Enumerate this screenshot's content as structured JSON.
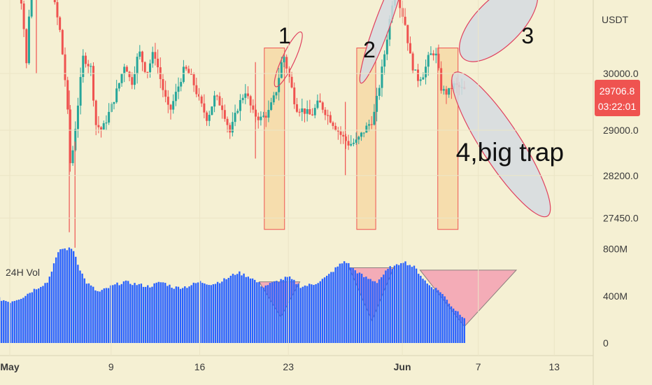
{
  "chart_data": {
    "type": "candlestick",
    "currency": "USDT",
    "y_ticks": [
      "30000.0",
      "29000.0",
      "28200.0",
      "27450.0"
    ],
    "ylim": [
      26900,
      31900
    ],
    "last_price": {
      "value": "29706.8",
      "countdown": "03:22:01"
    },
    "x_ticks": [
      {
        "label": "May",
        "day": 1,
        "bold": true
      },
      {
        "label": "9",
        "day": 9,
        "bold": false
      },
      {
        "label": "16",
        "day": 16,
        "bold": false
      },
      {
        "label": "23",
        "day": 23,
        "bold": false
      },
      {
        "label": "Jun",
        "day": 32,
        "bold": true
      },
      {
        "label": "7",
        "day": 38,
        "bold": false
      },
      {
        "label": "13",
        "day": 44,
        "bold": false
      }
    ],
    "price_path": [
      [
        1.5,
        31700
      ],
      [
        2,
        31200
      ],
      [
        2.3,
        30100
      ],
      [
        2.6,
        31400
      ],
      [
        3,
        31800
      ],
      [
        3.6,
        31300
      ],
      [
        4.2,
        31600
      ],
      [
        5,
        30700
      ],
      [
        5.5,
        29600
      ],
      [
        5.8,
        28300
      ],
      [
        6.2,
        29100
      ],
      [
        6.8,
        30300
      ],
      [
        7.4,
        30100
      ],
      [
        7.8,
        29100
      ],
      [
        8.3,
        29000
      ],
      [
        9,
        29400
      ],
      [
        9.6,
        29800
      ],
      [
        10.1,
        30200
      ],
      [
        10.6,
        29800
      ],
      [
        11.2,
        30400
      ],
      [
        11.8,
        30000
      ],
      [
        12.4,
        30400
      ],
      [
        13,
        29800
      ],
      [
        13.6,
        29300
      ],
      [
        14.2,
        29700
      ],
      [
        14.8,
        30100
      ],
      [
        15.4,
        29900
      ],
      [
        16,
        29500
      ],
      [
        16.6,
        29200
      ],
      [
        17.2,
        29600
      ],
      [
        17.8,
        29400
      ],
      [
        18.4,
        28950
      ],
      [
        19,
        29400
      ],
      [
        19.6,
        29700
      ],
      [
        20.2,
        29300
      ],
      [
        20.8,
        29200
      ],
      [
        21.4,
        29300
      ],
      [
        22,
        29650
      ],
      [
        22.6,
        30350
      ],
      [
        23.1,
        29900
      ],
      [
        23.6,
        29400
      ],
      [
        24.2,
        29350
      ],
      [
        24.8,
        29250
      ],
      [
        25.4,
        29500
      ],
      [
        26,
        29300
      ],
      [
        26.6,
        29100
      ],
      [
        27.2,
        28900
      ],
      [
        27.8,
        28750
      ],
      [
        28.4,
        28800
      ],
      [
        29,
        29000
      ],
      [
        29.7,
        29200
      ],
      [
        30.2,
        29800
      ],
      [
        30.7,
        30500
      ],
      [
        31.1,
        31100
      ],
      [
        31.5,
        31700
      ],
      [
        31.8,
        31200
      ],
      [
        32.2,
        30900
      ],
      [
        32.7,
        30200
      ],
      [
        33.2,
        29900
      ],
      [
        33.7,
        30000
      ],
      [
        34.1,
        30300
      ],
      [
        34.6,
        30400
      ],
      [
        35.1,
        29700
      ],
      [
        35.6,
        29650
      ],
      [
        36,
        29800
      ],
      [
        36.5,
        29750
      ],
      [
        36.9,
        29700
      ]
    ],
    "spikes": [
      {
        "day": 5.7,
        "low": 27200,
        "high": 29700
      },
      {
        "day": 3.1,
        "low": 30000,
        "high": 31900
      },
      {
        "day": 20.4,
        "low": 28500,
        "high": 30200
      },
      {
        "day": 27.5,
        "low": 28200,
        "high": 29500
      }
    ],
    "volume_label": "24H Vol",
    "volume_ticks": [
      "800M",
      "400M",
      "0"
    ],
    "volume_ylim": [
      0,
      800
    ],
    "volume_path": [
      [
        0,
        380
      ],
      [
        1,
        350
      ],
      [
        2,
        390
      ],
      [
        3,
        460
      ],
      [
        4,
        520
      ],
      [
        4.5,
        680
      ],
      [
        5,
        800
      ],
      [
        6,
        800
      ],
      [
        6.5,
        640
      ],
      [
        7,
        520
      ],
      [
        8,
        430
      ],
      [
        9,
        480
      ],
      [
        10,
        520
      ],
      [
        11,
        500
      ],
      [
        12,
        480
      ],
      [
        13,
        520
      ],
      [
        14,
        470
      ],
      [
        15,
        480
      ],
      [
        16,
        520
      ],
      [
        17,
        500
      ],
      [
        18,
        540
      ],
      [
        19,
        600
      ],
      [
        20,
        560
      ],
      [
        21,
        480
      ],
      [
        22,
        520
      ],
      [
        23,
        560
      ],
      [
        24,
        480
      ],
      [
        25,
        500
      ],
      [
        26,
        560
      ],
      [
        27,
        660
      ],
      [
        27.5,
        700
      ],
      [
        28,
        640
      ],
      [
        29,
        560
      ],
      [
        30,
        520
      ],
      [
        31,
        640
      ],
      [
        31.5,
        650
      ],
      [
        32,
        700
      ],
      [
        33,
        640
      ],
      [
        34,
        500
      ],
      [
        35,
        440
      ],
      [
        36,
        300
      ],
      [
        36.9,
        220
      ]
    ],
    "annotations": [
      {
        "label": "1",
        "kind": "number"
      },
      {
        "label": "2",
        "kind": "number"
      },
      {
        "label": "3",
        "kind": "number"
      },
      {
        "label": "4,big trap",
        "kind": "number"
      }
    ],
    "colors": {
      "background": "#f5f0d3",
      "up": "#26a69a",
      "down": "#ef5350",
      "volume": "#2962ff",
      "price_tag": "#ef5350",
      "highlight_zone": "#f6d7a0",
      "triangle": "#f4a4b4",
      "ellipse_fill": "#d5dbe1",
      "ellipse_stroke": "#e0405e"
    }
  }
}
